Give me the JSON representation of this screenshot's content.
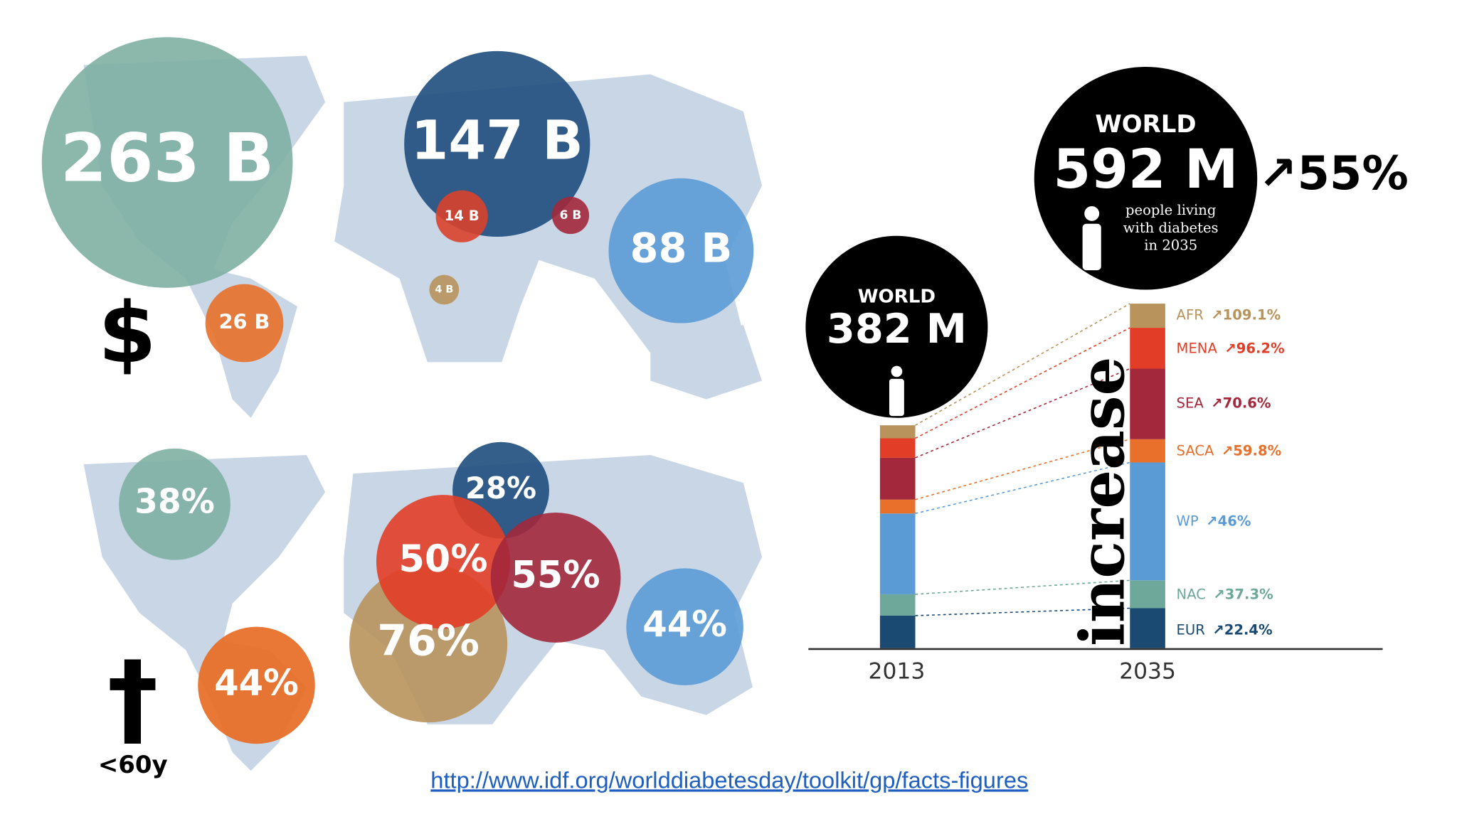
{
  "cost_map": {
    "symbol": "$",
    "bubbles": [
      "263 B",
      "147 B",
      "88 B",
      "26 B",
      "14 B",
      "6 B",
      "4 B"
    ]
  },
  "death_map": {
    "symbol": "†",
    "caption": "<60y",
    "bubbles": [
      "38%",
      "28%",
      "50%",
      "55%",
      "76%",
      "44%",
      "44%"
    ]
  },
  "world_2013": {
    "heading": "WORLD",
    "value": "382 M"
  },
  "world_2035": {
    "heading": "WORLD",
    "value": "592 M",
    "caption": [
      "people living",
      "with diabetes",
      "in 2035"
    ],
    "increase": "↗55%"
  },
  "increase_word": "increase",
  "years": [
    "2013",
    "2035"
  ],
  "regions": [
    {
      "name": "AFR",
      "change": "↗109.1%"
    },
    {
      "name": "MENA",
      "change": "↗96.2%"
    },
    {
      "name": "SEA",
      "change": "↗70.6%"
    },
    {
      "name": "SACA",
      "change": "↗59.8%"
    },
    {
      "name": "WP",
      "change": "↗46%"
    },
    {
      "name": "NAC",
      "change": "↗37.3%"
    },
    {
      "name": "EUR",
      "change": "↗22.4%"
    }
  ],
  "source_url": "http://www.idf.org/worlddiabetesday/toolkit/gp/facts-figures"
}
